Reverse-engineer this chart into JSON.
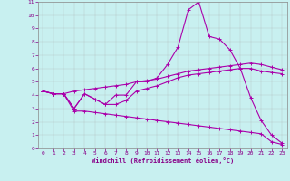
{
  "xlabel": "Windchill (Refroidissement éolien,°C)",
  "ylabel": "",
  "bg_color": "#c8f0f0",
  "line_color": "#aa00aa",
  "xlim": [
    -0.5,
    23.5
  ],
  "ylim": [
    0,
    11
  ],
  "xticks": [
    0,
    1,
    2,
    3,
    4,
    5,
    6,
    7,
    8,
    9,
    10,
    11,
    12,
    13,
    14,
    15,
    16,
    17,
    18,
    19,
    20,
    21,
    22,
    23
  ],
  "yticks": [
    0,
    1,
    2,
    3,
    4,
    5,
    6,
    7,
    8,
    9,
    10,
    11
  ],
  "line1_x": [
    0,
    1,
    2,
    3,
    4,
    5,
    6,
    7,
    8,
    9,
    10,
    11,
    12,
    13,
    14,
    15,
    16,
    17,
    18,
    19,
    20,
    21,
    22,
    23
  ],
  "line1_y": [
    4.3,
    4.1,
    4.1,
    3.0,
    4.1,
    3.7,
    3.3,
    4.0,
    4.0,
    5.0,
    5.0,
    5.3,
    6.3,
    7.6,
    10.4,
    11.0,
    8.4,
    8.2,
    7.4,
    6.0,
    3.8,
    2.1,
    1.0,
    0.4
  ],
  "line2_x": [
    0,
    1,
    2,
    3,
    4,
    5,
    6,
    7,
    8,
    9,
    10,
    11,
    12,
    13,
    14,
    15,
    16,
    17,
    18,
    19,
    20,
    21,
    22,
    23
  ],
  "line2_y": [
    4.3,
    4.1,
    4.1,
    3.0,
    4.1,
    3.7,
    3.3,
    3.3,
    3.6,
    4.3,
    4.5,
    4.7,
    5.0,
    5.3,
    5.5,
    5.6,
    5.7,
    5.8,
    5.9,
    6.0,
    6.0,
    5.8,
    5.7,
    5.6
  ],
  "line3_x": [
    0,
    1,
    2,
    3,
    4,
    5,
    6,
    7,
    8,
    9,
    10,
    11,
    12,
    13,
    14,
    15,
    16,
    17,
    18,
    19,
    20,
    21,
    22,
    23
  ],
  "line3_y": [
    4.3,
    4.1,
    4.1,
    2.8,
    2.8,
    2.7,
    2.6,
    2.5,
    2.4,
    2.3,
    2.2,
    2.1,
    2.0,
    1.9,
    1.8,
    1.7,
    1.6,
    1.5,
    1.4,
    1.3,
    1.2,
    1.1,
    0.5,
    0.3
  ],
  "line4_x": [
    0,
    1,
    2,
    3,
    4,
    5,
    6,
    7,
    8,
    9,
    10,
    11,
    12,
    13,
    14,
    15,
    16,
    17,
    18,
    19,
    20,
    21,
    22,
    23
  ],
  "line4_y": [
    4.3,
    4.1,
    4.1,
    4.3,
    4.4,
    4.5,
    4.6,
    4.7,
    4.8,
    5.0,
    5.1,
    5.2,
    5.4,
    5.6,
    5.8,
    5.9,
    6.0,
    6.1,
    6.2,
    6.3,
    6.4,
    6.3,
    6.1,
    5.9
  ],
  "grid_color": "#aaaaaa",
  "font_color": "#880088",
  "font_family": "monospace"
}
